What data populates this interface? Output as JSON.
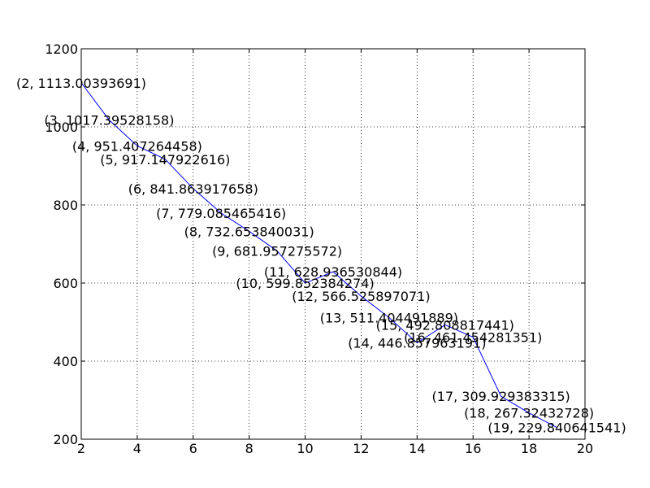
{
  "chart_data": {
    "type": "line",
    "title": "",
    "xlabel": "",
    "ylabel": "",
    "xlim": [
      2,
      20
    ],
    "ylim": [
      200,
      1200
    ],
    "xticks": [
      2,
      4,
      6,
      8,
      10,
      12,
      14,
      16,
      18,
      20
    ],
    "yticks": [
      200,
      400,
      600,
      800,
      1000,
      1200
    ],
    "grid": true,
    "legend": "none",
    "series": [
      {
        "color": "#0000ff",
        "x": [
          2,
          3,
          4,
          5,
          6,
          7,
          8,
          9,
          10,
          11,
          12,
          13,
          14,
          15,
          16,
          17,
          18,
          19
        ],
        "y": [
          1113.00393691,
          1017.39528158,
          951.407264458,
          917.147922616,
          841.863917658,
          779.085465416,
          732.653840031,
          681.957275572,
          599.852384274,
          628.936530844,
          566.525897071,
          511.404491889,
          446.857963191,
          492.808817441,
          461.454281351,
          309.929383315,
          267.32432728,
          229.840641541
        ]
      }
    ],
    "annotations": [
      "(2, 1113.00393691)",
      "(3, 1017.39528158)",
      "(4, 951.407264458)",
      "(5, 917.147922616)",
      "(6, 841.863917658)",
      "(7, 779.085465416)",
      "(8, 732.653840031)",
      "(9, 681.957275572)",
      "(10, 599.852384274)",
      "(11, 628.936530844)",
      "(12, 566.525897071)",
      "(13, 511.404491889)",
      "(14, 446.857963191)",
      "(15, 492.808817441)",
      "(16, 461.454281351)",
      "(17, 309.929383315)",
      "(18, 267.32432728)",
      "(19, 229.840641541)"
    ]
  }
}
